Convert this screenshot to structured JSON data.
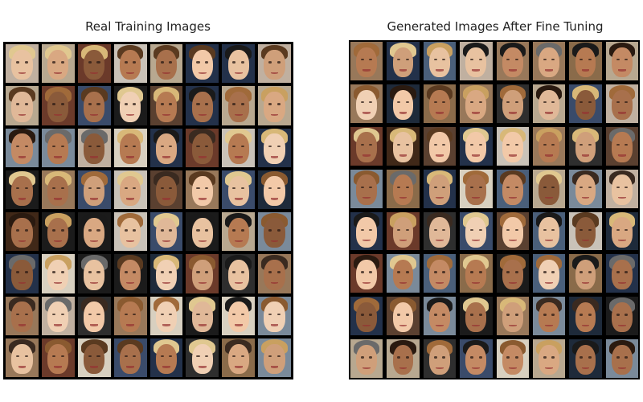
{
  "panels": {
    "real": {
      "title": "Real Training Images",
      "rows": 8,
      "cols": 8
    },
    "generated": {
      "title": "Generated Images After Fine Tuning",
      "rows": 8,
      "cols": 8
    }
  },
  "colors": {
    "grid_border": "#000000",
    "background": "#ffffff",
    "title_text": "#222222"
  }
}
